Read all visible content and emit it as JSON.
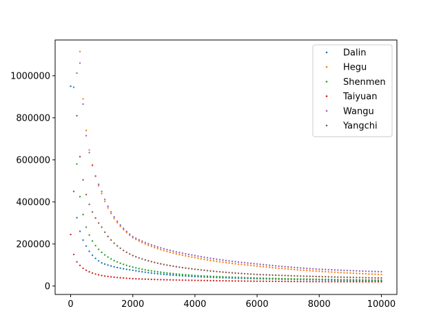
{
  "chart_data": {
    "type": "scatter",
    "title": "",
    "xlabel": "",
    "ylabel": "",
    "xlim": [
      -500,
      10500
    ],
    "ylim": [
      -40000,
      1170000
    ],
    "grid": false,
    "legend_placement": "top-right",
    "x_ticks": [
      0,
      2000,
      4000,
      6000,
      8000,
      10000
    ],
    "x_tick_labels": [
      "0",
      "2000",
      "4000",
      "6000",
      "8000",
      "10000"
    ],
    "y_ticks": [
      0,
      200000,
      400000,
      600000,
      800000,
      1000000
    ],
    "y_tick_labels": [
      "0",
      "200000",
      "400000",
      "600000",
      "800000",
      "1000000"
    ],
    "x_sampling": {
      "start": 0,
      "stop": 10000,
      "step": 100
    },
    "series": [
      {
        "name": "Dalin",
        "color": "#1f77b4",
        "curve_note": "approx decay ~ 1.1e6/(k+1)",
        "values_at": {
          "x": [
            0,
            100,
            200,
            300,
            500,
            1000,
            2000,
            4000,
            6000,
            8000,
            10000
          ],
          "y": [
            950000,
            450000,
            325000,
            260000,
            190000,
            110000,
            75000,
            45000,
            35000,
            30000,
            25000
          ]
        }
      },
      {
        "name": "Hegu",
        "color": "#ff7f0e",
        "values_at": {
          "x": [
            300,
            400,
            500,
            1000,
            2000,
            4000,
            6000,
            8000,
            10000
          ],
          "y": [
            1115000,
            890000,
            740000,
            440000,
            230000,
            135000,
            95000,
            70000,
            55000
          ]
        }
      },
      {
        "name": "Shenmen",
        "color": "#2ca02c",
        "values_at": {
          "x": [
            200,
            300,
            400,
            500,
            1000,
            2000,
            4000,
            6000,
            8000,
            10000
          ],
          "y": [
            580000,
            425000,
            340000,
            280000,
            160000,
            90000,
            50000,
            38000,
            32000,
            28000
          ]
        }
      },
      {
        "name": "Taiyuan",
        "color": "#d62728",
        "values_at": {
          "x": [
            0,
            100,
            200,
            300,
            500,
            1000,
            2000,
            4000,
            6000,
            8000,
            10000
          ],
          "y": [
            245000,
            150000,
            115000,
            98000,
            75000,
            50000,
            35000,
            27000,
            23000,
            21000,
            20000
          ]
        }
      },
      {
        "name": "Wangu",
        "color": "#9467bd",
        "values_at": {
          "x": [
            100,
            300,
            400,
            500,
            1000,
            2000,
            4000,
            6000,
            8000,
            10000
          ],
          "y": [
            945000,
            1060000,
            865000,
            715000,
            450000,
            235000,
            145000,
            105000,
            80000,
            68000
          ]
        }
      },
      {
        "name": "Yangchi",
        "color": "#8c564b",
        "values_at": {
          "x": [
            200,
            300,
            400,
            500,
            1000,
            2000,
            4000,
            6000,
            8000,
            10000
          ],
          "y": [
            810000,
            615000,
            505000,
            435000,
            280000,
            145000,
            80000,
            55000,
            45000,
            38000
          ]
        }
      }
    ]
  }
}
